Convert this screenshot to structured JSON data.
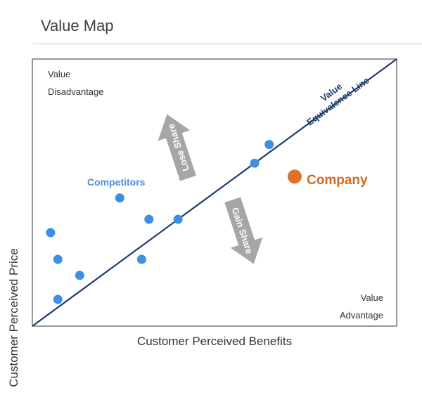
{
  "title": "Value Map",
  "axes": {
    "x_label": "Customer Perceived Benefits",
    "y_label": "Customer Perceived Price"
  },
  "regions": {
    "disadvantage": [
      "Value",
      "Disadvantage"
    ],
    "advantage": [
      "Value",
      "Advantage"
    ]
  },
  "line_label": [
    "Value",
    "Equivalence Line"
  ],
  "arrows": {
    "lose": "Lose Share",
    "gain": "Gain Share"
  },
  "legend": {
    "competitors": "Competitors",
    "company": "Company"
  },
  "colors": {
    "competitor_dot": "#3d8fe0",
    "company_dot": "#e0702a",
    "competitors_text": "#4a90d9",
    "company_text": "#d2691e",
    "line": "#1f3c6e",
    "arrow_fill": "#a6a6a6",
    "frame": "#555555"
  },
  "chart_data": {
    "type": "scatter",
    "xlim": [
      0,
      100
    ],
    "ylim": [
      0,
      100
    ],
    "series": [
      {
        "name": "Competitors",
        "points": [
          {
            "x": 5,
            "y": 35
          },
          {
            "x": 7,
            "y": 25
          },
          {
            "x": 7,
            "y": 10
          },
          {
            "x": 13,
            "y": 19
          },
          {
            "x": 24,
            "y": 48
          },
          {
            "x": 30,
            "y": 25
          },
          {
            "x": 32,
            "y": 40
          },
          {
            "x": 40,
            "y": 40
          },
          {
            "x": 61,
            "y": 61
          },
          {
            "x": 65,
            "y": 68
          }
        ]
      },
      {
        "name": "Company",
        "points": [
          {
            "x": 72,
            "y": 56
          }
        ]
      }
    ],
    "reference_line": {
      "from": [
        0,
        0
      ],
      "to": [
        100,
        100
      ]
    }
  }
}
